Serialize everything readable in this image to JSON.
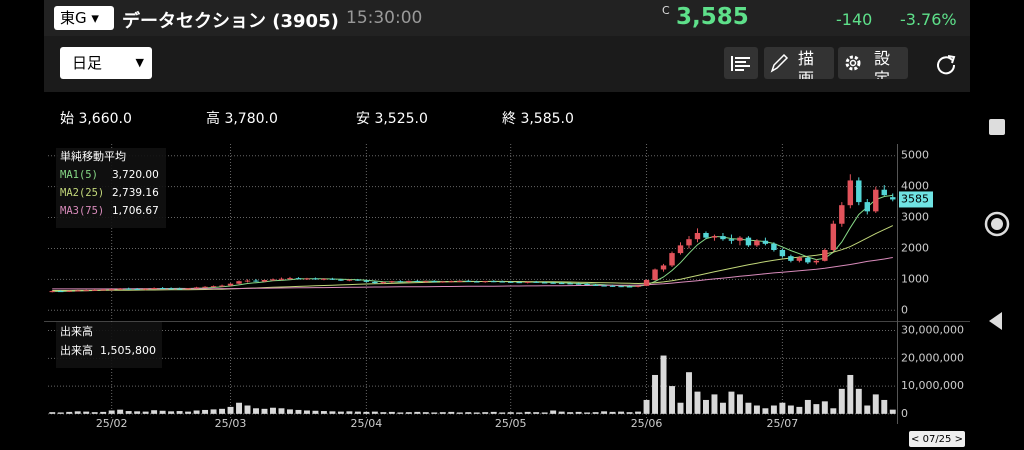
{
  "header": {
    "market": "東G",
    "name": "データセクション (3905)",
    "time": "15:30:00",
    "price_flag": "C",
    "price": "3,585",
    "change": "-140",
    "change_pct": "-3.76%"
  },
  "toolbar": {
    "period": "日足",
    "draw": "描画",
    "settings": "設定"
  },
  "ohlc": {
    "open_label": "始",
    "open": "3,660.0",
    "high_label": "高",
    "high": "3,780.0",
    "low_label": "安",
    "low": "3,525.0",
    "close_label": "終",
    "close": "3,585.0"
  },
  "chart_data": [
    {
      "type": "candlestick",
      "title": "単純移動平均",
      "up_color": "#e2535b",
      "down_color": "#54d6d6",
      "grid": true,
      "categories": [
        null,
        null,
        null,
        null,
        null,
        null,
        null,
        "25/02",
        null,
        null,
        null,
        null,
        null,
        null,
        null,
        null,
        null,
        null,
        null,
        null,
        null,
        "25/03",
        null,
        null,
        null,
        null,
        null,
        null,
        null,
        null,
        null,
        null,
        null,
        null,
        null,
        null,
        null,
        "25/04",
        null,
        null,
        null,
        null,
        null,
        null,
        null,
        null,
        null,
        null,
        null,
        null,
        null,
        null,
        null,
        null,
        "25/05",
        null,
        null,
        null,
        null,
        null,
        null,
        null,
        null,
        null,
        null,
        null,
        null,
        null,
        null,
        null,
        "25/06",
        null,
        null,
        null,
        null,
        null,
        null,
        null,
        null,
        null,
        null,
        null,
        null,
        null,
        null,
        null,
        "25/07",
        null,
        null,
        null,
        null,
        null,
        null,
        null,
        null,
        null,
        null,
        null,
        null,
        null
      ],
      "ohlc": [
        [
          600,
          640,
          580,
          620
        ],
        [
          620,
          650,
          600,
          610
        ],
        [
          610,
          640,
          590,
          630
        ],
        [
          630,
          660,
          610,
          640
        ],
        [
          640,
          670,
          620,
          650
        ],
        [
          650,
          680,
          630,
          660
        ],
        [
          660,
          690,
          640,
          670
        ],
        [
          670,
          700,
          650,
          680
        ],
        [
          680,
          720,
          660,
          700
        ],
        [
          700,
          730,
          670,
          690
        ],
        [
          690,
          720,
          660,
          680
        ],
        [
          680,
          710,
          650,
          700
        ],
        [
          700,
          740,
          680,
          720
        ],
        [
          720,
          750,
          690,
          710
        ],
        [
          710,
          740,
          680,
          700
        ],
        [
          700,
          730,
          670,
          690
        ],
        [
          690,
          720,
          670,
          710
        ],
        [
          710,
          760,
          700,
          740
        ],
        [
          740,
          780,
          720,
          760
        ],
        [
          760,
          800,
          740,
          780
        ],
        [
          780,
          830,
          760,
          800
        ],
        [
          800,
          880,
          780,
          860
        ],
        [
          860,
          960,
          840,
          940
        ],
        [
          940,
          1000,
          900,
          960
        ],
        [
          960,
          1010,
          920,
          930
        ],
        [
          930,
          990,
          910,
          980
        ],
        [
          980,
          1030,
          950,
          1000
        ],
        [
          1000,
          1060,
          970,
          1020
        ],
        [
          1020,
          1080,
          990,
          1040
        ],
        [
          1040,
          1070,
          1000,
          1010
        ],
        [
          1010,
          1050,
          980,
          1030
        ],
        [
          1030,
          1060,
          990,
          1000
        ],
        [
          1000,
          1040,
          970,
          1020
        ],
        [
          1020,
          1050,
          980,
          990
        ],
        [
          990,
          1020,
          950,
          970
        ],
        [
          970,
          1000,
          940,
          990
        ],
        [
          990,
          1010,
          950,
          960
        ],
        [
          960,
          990,
          900,
          920
        ],
        [
          920,
          950,
          860,
          880
        ],
        [
          880,
          930,
          850,
          910
        ],
        [
          910,
          950,
          880,
          940
        ],
        [
          940,
          970,
          900,
          920
        ],
        [
          920,
          960,
          890,
          950
        ],
        [
          950,
          980,
          920,
          930
        ],
        [
          930,
          960,
          900,
          940
        ],
        [
          940,
          970,
          910,
          920
        ],
        [
          920,
          950,
          890,
          930
        ],
        [
          930,
          960,
          900,
          940
        ],
        [
          940,
          970,
          910,
          950
        ],
        [
          950,
          980,
          920,
          930
        ],
        [
          930,
          960,
          900,
          920
        ],
        [
          920,
          950,
          890,
          940
        ],
        [
          940,
          970,
          910,
          930
        ],
        [
          930,
          960,
          900,
          920
        ],
        [
          920,
          950,
          890,
          910
        ],
        [
          910,
          940,
          880,
          900
        ],
        [
          900,
          930,
          870,
          920
        ],
        [
          920,
          950,
          890,
          900
        ],
        [
          900,
          930,
          870,
          890
        ],
        [
          890,
          920,
          860,
          880
        ],
        [
          880,
          910,
          850,
          870
        ],
        [
          870,
          900,
          840,
          860
        ],
        [
          860,
          890,
          830,
          850
        ],
        [
          850,
          880,
          810,
          820
        ],
        [
          820,
          850,
          790,
          800
        ],
        [
          800,
          830,
          770,
          790
        ],
        [
          790,
          820,
          760,
          780
        ],
        [
          780,
          800,
          750,
          770
        ],
        [
          770,
          800,
          740,
          760
        ],
        [
          760,
          800,
          740,
          790
        ],
        [
          790,
          1000,
          780,
          980
        ],
        [
          980,
          1350,
          960,
          1320
        ],
        [
          1320,
          1500,
          1250,
          1450
        ],
        [
          1450,
          1900,
          1400,
          1850
        ],
        [
          1850,
          2200,
          1800,
          2100
        ],
        [
          2100,
          2400,
          2000,
          2300
        ],
        [
          2300,
          2650,
          2200,
          2500
        ],
        [
          2500,
          2550,
          2300,
          2350
        ],
        [
          2350,
          2450,
          2250,
          2400
        ],
        [
          2400,
          2500,
          2250,
          2300
        ],
        [
          2300,
          2450,
          2150,
          2250
        ],
        [
          2250,
          2400,
          2100,
          2350
        ],
        [
          2350,
          2400,
          2050,
          2100
        ],
        [
          2100,
          2300,
          2050,
          2250
        ],
        [
          2250,
          2350,
          2100,
          2150
        ],
        [
          2150,
          2200,
          1900,
          1950
        ],
        [
          1950,
          2000,
          1700,
          1750
        ],
        [
          1750,
          1800,
          1550,
          1600
        ],
        [
          1600,
          1750,
          1550,
          1700
        ],
        [
          1700,
          1750,
          1500,
          1550
        ],
        [
          1550,
          1650,
          1480,
          1600
        ],
        [
          1600,
          2000,
          1580,
          1950
        ],
        [
          1950,
          2900,
          1900,
          2800
        ],
        [
          2800,
          3500,
          2700,
          3400
        ],
        [
          3400,
          4400,
          3300,
          4200
        ],
        [
          4200,
          4300,
          3400,
          3500
        ],
        [
          3500,
          3600,
          3100,
          3200
        ],
        [
          3200,
          4000,
          3150,
          3900
        ],
        [
          3900,
          4050,
          3700,
          3725
        ],
        [
          3660,
          3780,
          3525,
          3585
        ]
      ],
      "series": [
        {
          "name": "MA1(5)",
          "color": "#86d886",
          "current_label": "3,720.00",
          "values": [
            610,
            612,
            615,
            622,
            630,
            640,
            650,
            662,
            676,
            684,
            690,
            694,
            698,
            702,
            706,
            708,
            706,
            710,
            722,
            738,
            758,
            784,
            822,
            866,
            892,
            918,
            952,
            966,
            990,
            1014,
            1018,
            1020,
            1018,
            1012,
            1004,
            996,
            988,
            972,
            946,
            926,
            918,
            914,
            920,
            930,
            936,
            936,
            932,
            932,
            936,
            936,
            932,
            932,
            934,
            928,
            924,
            918,
            912,
            910,
            904,
            898,
            888,
            880,
            870,
            856,
            840,
            824,
            808,
            792,
            780,
            778,
            818,
            930,
            1078,
            1288,
            1540,
            1842,
            2120,
            2320,
            2390,
            2370,
            2320,
            2300,
            2270,
            2250,
            2220,
            2160,
            2050,
            1930,
            1830,
            1720,
            1640,
            1680,
            1880,
            2210,
            2670,
            3100,
            3340,
            3580,
            3680,
            3720
          ]
        },
        {
          "name": "MA2(25)",
          "color": "#c2d77a",
          "current_label": "2,739.16",
          "values": [
            640,
            640,
            641,
            642,
            643,
            644,
            645,
            647,
            649,
            651,
            653,
            655,
            657,
            659,
            661,
            663,
            665,
            668,
            672,
            677,
            683,
            690,
            700,
            712,
            722,
            732,
            742,
            752,
            762,
            772,
            782,
            792,
            802,
            812,
            822,
            832,
            842,
            850,
            856,
            862,
            870,
            878,
            886,
            894,
            902,
            910,
            916,
            920,
            924,
            928,
            930,
            932,
            934,
            934,
            932,
            930,
            928,
            926,
            924,
            922,
            918,
            914,
            908,
            902,
            896,
            890,
            884,
            878,
            872,
            866,
            872,
            892,
            918,
            956,
            1006,
            1064,
            1126,
            1186,
            1244,
            1302,
            1360,
            1416,
            1470,
            1524,
            1576,
            1620,
            1660,
            1690,
            1720,
            1750,
            1780,
            1820,
            1880,
            1960,
            2060,
            2200,
            2340,
            2480,
            2610,
            2739.16
          ]
        },
        {
          "name": "MA3(75)",
          "color": "#d98bbb",
          "current_label": "1,706.67",
          "values": [
            690,
            690,
            690,
            691,
            691,
            692,
            692,
            693,
            693,
            694,
            694,
            695,
            695,
            696,
            696,
            697,
            697,
            698,
            698,
            699,
            700,
            702,
            705,
            708,
            711,
            714,
            717,
            720,
            723,
            726,
            729,
            732,
            735,
            738,
            741,
            744,
            747,
            750,
            752,
            754,
            756,
            758,
            760,
            762,
            764,
            766,
            768,
            770,
            772,
            774,
            776,
            778,
            780,
            782,
            784,
            786,
            788,
            790,
            792,
            794,
            796,
            798,
            800,
            802,
            804,
            806,
            808,
            810,
            812,
            814,
            824,
            840,
            858,
            880,
            905,
            930,
            958,
            986,
            1014,
            1042,
            1070,
            1098,
            1126,
            1154,
            1182,
            1208,
            1232,
            1256,
            1280,
            1304,
            1328,
            1360,
            1400,
            1440,
            1480,
            1530,
            1580,
            1620,
            1660,
            1706.67
          ]
        }
      ],
      "ylim": [
        -250,
        5250
      ],
      "yticks": [
        0,
        1000,
        2000,
        3000,
        4000,
        5000
      ],
      "last_price": 3585,
      "cursor_label": "< 07/25 >"
    },
    {
      "type": "bar",
      "title": "出来高",
      "value_name": "出来高",
      "value_label": "1,505,800",
      "color": "#d9d9d9",
      "values": [
        600000,
        500000,
        700000,
        900000,
        800000,
        600000,
        700000,
        1200000,
        1500000,
        1000000,
        900000,
        800000,
        1300000,
        1100000,
        900000,
        1000000,
        800000,
        1200000,
        1400000,
        1600000,
        1800000,
        2500000,
        4000000,
        3000000,
        2000000,
        1800000,
        2200000,
        2000000,
        1600000,
        1400000,
        1200000,
        1100000,
        1000000,
        900000,
        800000,
        900000,
        800000,
        700000,
        800000,
        600000,
        700000,
        500000,
        600000,
        700000,
        600000,
        500000,
        600000,
        700000,
        500000,
        600000,
        500000,
        600000,
        700000,
        500000,
        600000,
        500000,
        700000,
        600000,
        500000,
        1200000,
        800000,
        600000,
        700000,
        500000,
        600000,
        900000,
        700000,
        800000,
        600000,
        800000,
        5000000,
        14000000,
        21000000,
        10000000,
        4000000,
        15000000,
        8000000,
        5000000,
        7000000,
        4000000,
        8000000,
        7000000,
        4000000,
        3000000,
        2000000,
        3000000,
        4000000,
        3000000,
        2500000,
        5000000,
        3500000,
        4500000,
        2000000,
        9000000,
        14000000,
        9000000,
        3000000,
        7000000,
        5000000,
        1505800
      ],
      "ylim": [
        -1500000,
        32000000
      ],
      "yticks": [
        {
          "value": 0,
          "label": "0"
        },
        {
          "value": 10000000,
          "label": "10,000,000"
        },
        {
          "value": 20000000,
          "label": "20,000,000"
        },
        {
          "value": 30000000,
          "label": "30,000,000"
        }
      ]
    }
  ]
}
